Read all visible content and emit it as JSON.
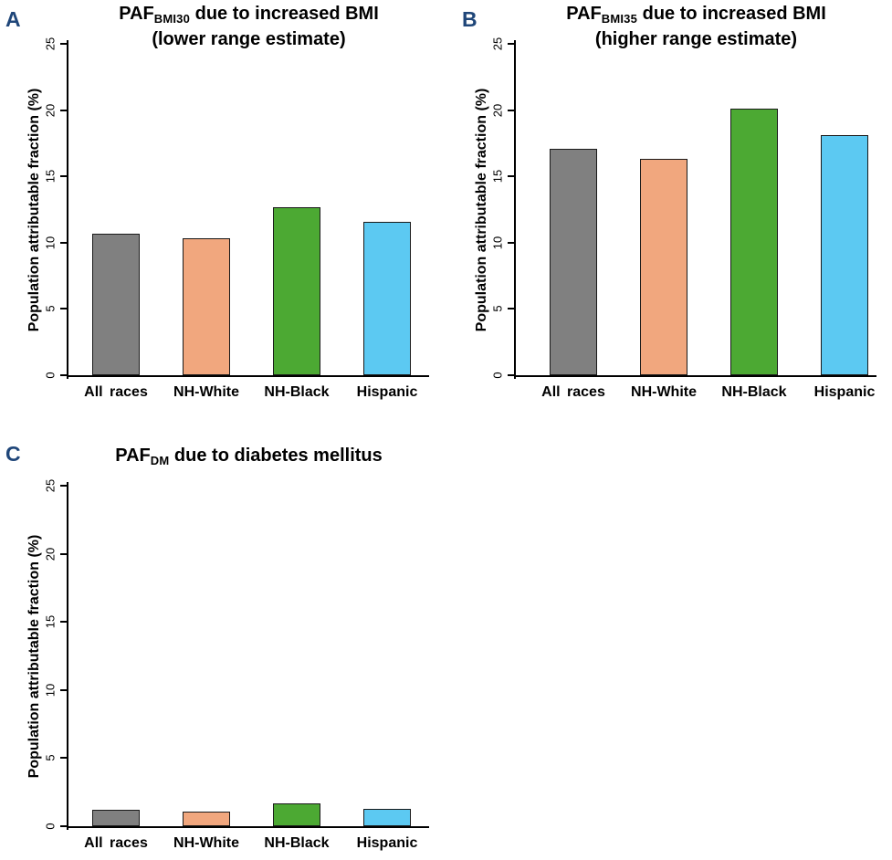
{
  "page": {
    "background": "#FFFFFF",
    "text_color": "#000000",
    "panel_letter_color": "#1F4679",
    "axis_color": "#000000",
    "bar_border_color": "#1A1A1A"
  },
  "ylabel": "Population attributable fraction (%)",
  "categories": [
    "All races",
    "NH-White",
    "NH-Black",
    "Hispanic"
  ],
  "bar_colors": [
    "#808080",
    "#F1A77E",
    "#4CA933",
    "#5CC9F2"
  ],
  "chart_data": [
    {
      "type": "bar",
      "panel": "A",
      "title": {
        "prefix": "PAF",
        "subscript": "BMI30",
        "rest": " due to increased BMI",
        "line2": "(lower range estimate)"
      },
      "categories": [
        "All races",
        "NH-White",
        "NH-Black",
        "Hispanic"
      ],
      "values": [
        10.7,
        10.3,
        12.7,
        11.6
      ],
      "bar_colors": [
        "#808080",
        "#F1A77E",
        "#4CA933",
        "#5CC9F2"
      ],
      "xlabel": "",
      "ylabel": "Population attributable fraction (%)",
      "ylim": [
        0,
        25
      ],
      "yticks": [
        0,
        5,
        10,
        15,
        20,
        25
      ],
      "grid": false,
      "legend": "none"
    },
    {
      "type": "bar",
      "panel": "B",
      "title": {
        "prefix": "PAF",
        "subscript": "BMI35",
        "rest": " due to increased BMI",
        "line2": "(higher range estimate)"
      },
      "categories": [
        "All races",
        "NH-White",
        "NH-Black",
        "Hispanic"
      ],
      "values": [
        17.1,
        16.3,
        20.1,
        18.1
      ],
      "bar_colors": [
        "#808080",
        "#F1A77E",
        "#4CA933",
        "#5CC9F2"
      ],
      "xlabel": "",
      "ylabel": "Population attributable fraction (%)",
      "ylim": [
        0,
        25
      ],
      "yticks": [
        0,
        5,
        10,
        15,
        20,
        25
      ],
      "grid": false,
      "legend": "none"
    },
    {
      "type": "bar",
      "panel": "C",
      "title": {
        "prefix": "PAF",
        "subscript": "DM",
        "rest": " due to diabetes mellitus",
        "line2": ""
      },
      "categories": [
        "All races",
        "NH-White",
        "NH-Black",
        "Hispanic"
      ],
      "values": [
        1.2,
        1.1,
        1.7,
        1.3
      ],
      "bar_colors": [
        "#808080",
        "#F1A77E",
        "#4CA933",
        "#5CC9F2"
      ],
      "xlabel": "",
      "ylabel": "Population attributable fraction (%)",
      "ylim": [
        0,
        25
      ],
      "yticks": [
        0,
        5,
        10,
        15,
        20,
        25
      ],
      "grid": false,
      "legend": "none"
    }
  ]
}
